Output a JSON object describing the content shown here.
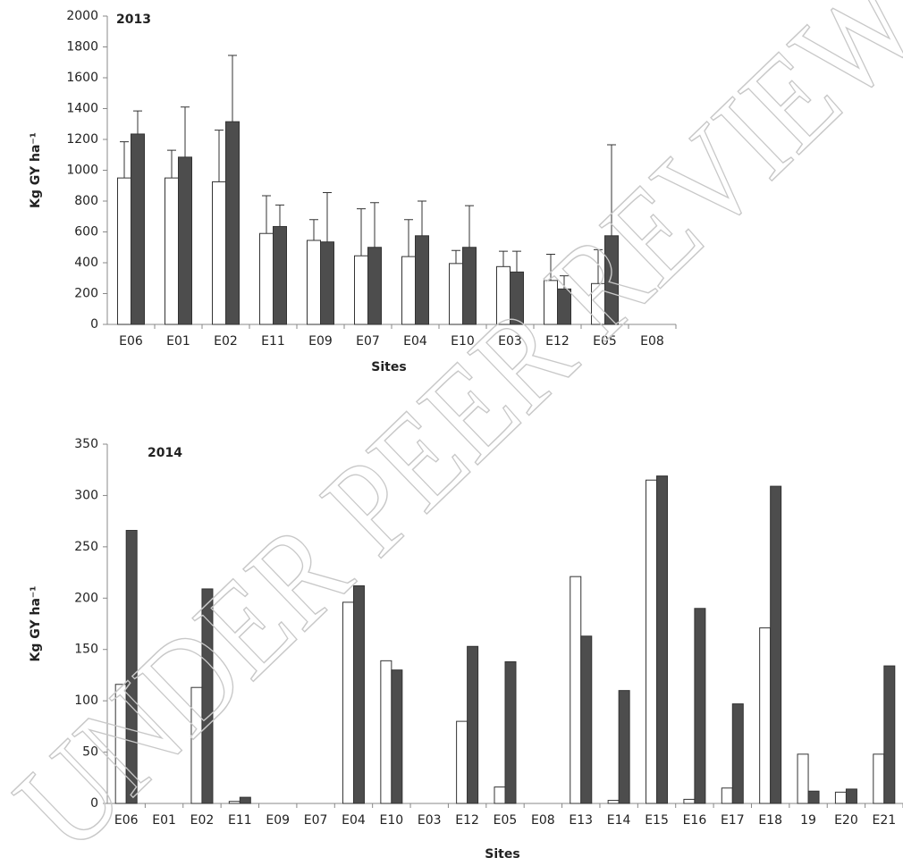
{
  "chart_data": [
    {
      "type": "bar",
      "title": "2013",
      "ylabel": "Kg GY ha⁻¹",
      "xlabel": "Sites",
      "categories": [
        "E06",
        "E01",
        "E02",
        "E11",
        "E09",
        "E07",
        "E04",
        "E10",
        "E03",
        "E12",
        "E05",
        "E08"
      ],
      "series": [
        {
          "color": "#ffffff",
          "values": [
            950,
            950,
            925,
            590,
            545,
            445,
            440,
            395,
            375,
            285,
            265,
            0
          ],
          "errors": [
            235,
            180,
            335,
            245,
            135,
            305,
            240,
            85,
            100,
            170,
            220,
            null
          ]
        },
        {
          "color": "#4d4d4d",
          "values": [
            1235,
            1085,
            1315,
            635,
            535,
            500,
            575,
            500,
            340,
            230,
            575,
            0
          ],
          "errors": [
            150,
            325,
            430,
            140,
            320,
            290,
            225,
            270,
            135,
            85,
            590,
            null
          ]
        }
      ],
      "ylim": [
        0,
        2000
      ],
      "yticks": [
        0,
        200,
        400,
        600,
        800,
        1000,
        1200,
        1400,
        1600,
        1800,
        2000
      ]
    },
    {
      "type": "bar",
      "title": "2014",
      "ylabel": "Kg GY ha⁻¹",
      "xlabel": "Sites",
      "categories": [
        "E06",
        "E01",
        "E02",
        "E11",
        "E09",
        "E07",
        "E04",
        "E10",
        "E03",
        "E12",
        "E05",
        "E08",
        "E13",
        "E14",
        "E15",
        "E16",
        "E17",
        "E18",
        "19",
        "E20",
        "E21"
      ],
      "series": [
        {
          "color": "#ffffff",
          "values": [
            116,
            0,
            113,
            2,
            0,
            0,
            196,
            139,
            0,
            80,
            16,
            0,
            221,
            3,
            315,
            4,
            15,
            171,
            48,
            11,
            48
          ]
        },
        {
          "color": "#4d4d4d",
          "values": [
            266,
            0,
            209,
            6,
            0,
            0,
            212,
            130,
            0,
            153,
            138,
            0,
            163,
            110,
            319,
            190,
            97,
            309,
            12,
            14,
            134
          ]
        }
      ],
      "ylim": [
        0,
        350
      ],
      "yticks": [
        0,
        50,
        100,
        150,
        200,
        250,
        300,
        350
      ]
    }
  ],
  "watermark": "UNDER PEER REVIEW"
}
